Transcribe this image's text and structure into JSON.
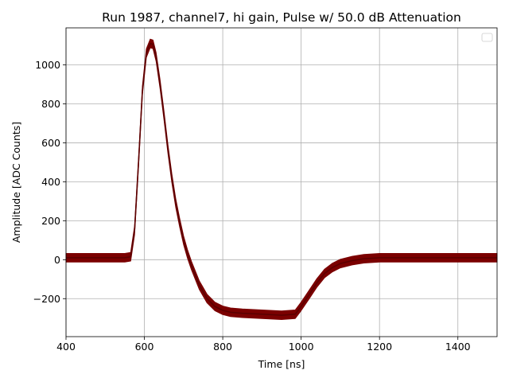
{
  "chart_data": {
    "type": "line",
    "title": "Run 1987, channel7, hi gain, Pulse w/ 50.0 dB Attenuation",
    "xlabel": "Time [ns]",
    "ylabel": "Amplitude [ADC Counts]",
    "xlim": [
      400,
      1500
    ],
    "ylim": [
      -395,
      1190
    ],
    "xticks": [
      400,
      600,
      800,
      1000,
      1200,
      1400
    ],
    "yticks": [
      -200,
      0,
      200,
      400,
      600,
      800,
      1000
    ],
    "grid": true,
    "legend": "top-right (empty)",
    "series": [
      {
        "color": "#7b0000",
        "band_halfwidth": 22,
        "x": [
          400,
          450,
          500,
          550,
          565,
          575,
          585,
          595,
          605,
          615,
          622,
          630,
          640,
          650,
          660,
          670,
          680,
          690,
          700,
          710,
          720,
          740,
          760,
          780,
          800,
          820,
          850,
          900,
          950,
          985,
          1000,
          1020,
          1040,
          1060,
          1080,
          1100,
          1130,
          1160,
          1200,
          1250,
          1300,
          1400,
          1500
        ],
        "y": [
          10,
          10,
          10,
          10,
          15,
          150,
          500,
          870,
          1060,
          1110,
          1105,
          1040,
          900,
          740,
          570,
          420,
          290,
          190,
          100,
          30,
          -30,
          -130,
          -200,
          -240,
          -260,
          -270,
          -275,
          -280,
          -285,
          -280,
          -240,
          -180,
          -120,
          -70,
          -40,
          -20,
          -5,
          5,
          10,
          10,
          10,
          10,
          10
        ]
      }
    ]
  }
}
